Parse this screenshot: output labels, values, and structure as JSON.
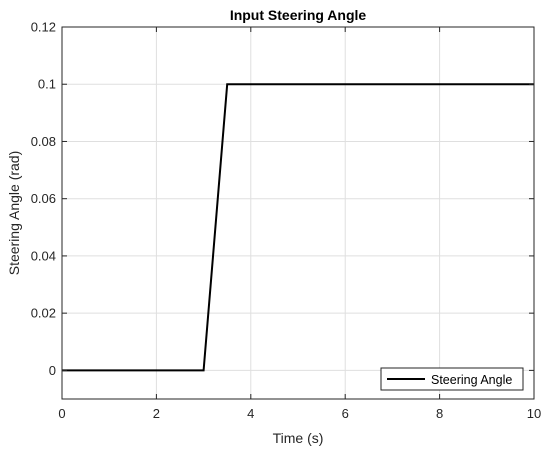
{
  "chart_data": {
    "type": "line",
    "title": "Input Steering Angle",
    "xlabel": "Time (s)",
    "ylabel": "Steering Angle (rad)",
    "xlim": [
      0,
      10
    ],
    "ylim": [
      -0.01,
      0.12
    ],
    "x_ticks": [
      0,
      2,
      4,
      6,
      8,
      10
    ],
    "y_ticks": [
      0,
      0.02,
      0.04,
      0.06,
      0.08,
      0.1,
      0.12
    ],
    "x_tick_labels": [
      "0",
      "2",
      "4",
      "6",
      "8",
      "10"
    ],
    "y_tick_labels": [
      "0",
      "0.02",
      "0.04",
      "0.06",
      "0.08",
      "0.1",
      "0.12"
    ],
    "grid": true,
    "legend_position": "bottom-right",
    "series": [
      {
        "name": "Steering Angle",
        "color": "#000000",
        "x": [
          0,
          3,
          3.5,
          10
        ],
        "y": [
          0,
          0,
          0.1,
          0.1
        ]
      }
    ]
  }
}
